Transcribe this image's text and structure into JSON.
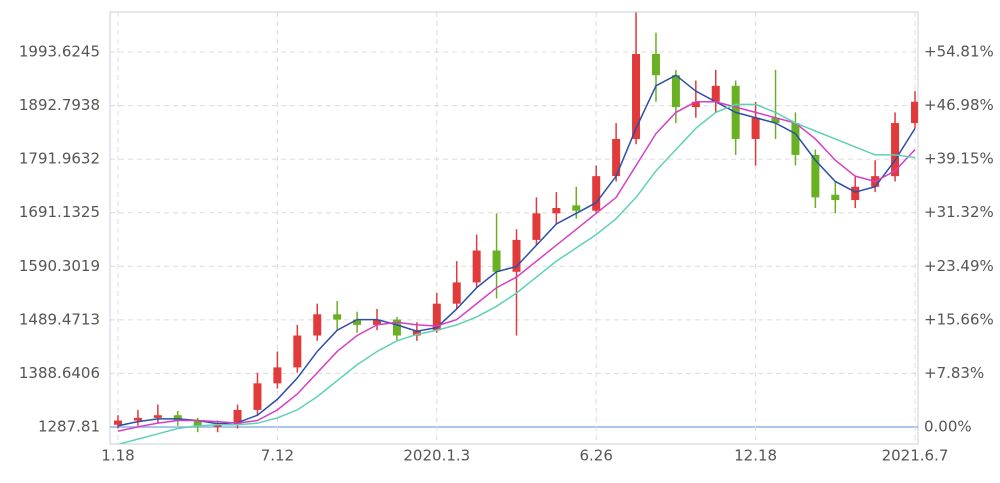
{
  "chart_data": {
    "type": "candlestick",
    "categories": [
      "1.18",
      null,
      null,
      null,
      null,
      null,
      null,
      null,
      "7.12",
      null,
      null,
      null,
      null,
      null,
      null,
      null,
      "2020.1.3",
      null,
      null,
      null,
      null,
      null,
      null,
      null,
      "6.26",
      null,
      null,
      null,
      null,
      null,
      null,
      null,
      "12.18",
      null,
      null,
      null,
      null,
      null,
      null,
      null,
      "2021.6.7"
    ],
    "open": [
      1292,
      1300,
      1305,
      1310,
      1300,
      1288,
      1292,
      1320,
      1370,
      1400,
      1460,
      1500,
      1490,
      1480,
      1490,
      1460,
      1470,
      1520,
      1560,
      1620,
      1580,
      1640,
      1690,
      1705,
      1695,
      1760,
      1830,
      1990,
      1950,
      1890,
      1900,
      1930,
      1830,
      1870,
      1860,
      1800,
      1725,
      1715,
      1740,
      1760,
      1860
    ],
    "high": [
      1310,
      1320,
      1330,
      1318,
      1305,
      1300,
      1330,
      1390,
      1430,
      1480,
      1520,
      1525,
      1505,
      1510,
      1495,
      1485,
      1540,
      1600,
      1650,
      1690,
      1660,
      1720,
      1730,
      1740,
      1780,
      1860,
      2068,
      2030,
      1960,
      1940,
      1960,
      1940,
      1900,
      1960,
      1880,
      1810,
      1750,
      1760,
      1790,
      1880,
      1920
    ],
    "low": [
      1285,
      1290,
      1295,
      1290,
      1278,
      1278,
      1285,
      1310,
      1360,
      1390,
      1450,
      1470,
      1465,
      1470,
      1450,
      1450,
      1465,
      1510,
      1550,
      1530,
      1460,
      1630,
      1670,
      1680,
      1690,
      1750,
      1820,
      1900,
      1860,
      1870,
      1880,
      1800,
      1780,
      1830,
      1780,
      1700,
      1690,
      1700,
      1730,
      1750,
      1850
    ],
    "close": [
      1300,
      1305,
      1310,
      1300,
      1290,
      1292,
      1320,
      1370,
      1400,
      1460,
      1500,
      1490,
      1480,
      1490,
      1460,
      1470,
      1520,
      1560,
      1620,
      1580,
      1640,
      1690,
      1700,
      1695,
      1760,
      1830,
      1990,
      1950,
      1890,
      1900,
      1930,
      1830,
      1870,
      1860,
      1800,
      1720,
      1715,
      1740,
      1760,
      1860,
      1900
    ],
    "up_color": "#e03a3a",
    "down_color": "#6ab023",
    "series": [
      {
        "color": "#2a4fa8",
        "values": [
          1290,
          1298,
          1303,
          1303,
          1300,
          1294,
          1296,
          1310,
          1340,
          1380,
          1430,
          1470,
          1490,
          1490,
          1480,
          1468,
          1475,
          1510,
          1550,
          1580,
          1590,
          1630,
          1670,
          1690,
          1710,
          1760,
          1850,
          1930,
          1950,
          1920,
          1900,
          1880,
          1870,
          1860,
          1840,
          1790,
          1750,
          1730,
          1740,
          1790,
          1850
        ]
      },
      {
        "color": "#d63fc4",
        "values": [
          1280,
          1288,
          1295,
          1300,
          1300,
          1298,
          1295,
          1300,
          1320,
          1350,
          1390,
          1430,
          1460,
          1480,
          1485,
          1480,
          1478,
          1490,
          1520,
          1550,
          1570,
          1600,
          1630,
          1660,
          1690,
          1720,
          1780,
          1840,
          1880,
          1900,
          1900,
          1890,
          1880,
          1870,
          1860,
          1830,
          1790,
          1760,
          1750,
          1770,
          1810
        ]
      },
      {
        "color": "#5fd1b5",
        "values": [
          1255,
          1265,
          1275,
          1285,
          1290,
          1292,
          1292,
          1295,
          1305,
          1320,
          1345,
          1375,
          1405,
          1430,
          1450,
          1462,
          1470,
          1480,
          1495,
          1515,
          1540,
          1570,
          1600,
          1625,
          1650,
          1680,
          1720,
          1770,
          1810,
          1850,
          1880,
          1895,
          1895,
          1880,
          1860,
          1845,
          1830,
          1815,
          1800,
          1800,
          1795
        ]
      }
    ],
    "ylim": [
      1255.8,
      2069
    ],
    "yticks": [
      1287.81,
      1388.6406,
      1489.4713,
      1590.3019,
      1691.1325,
      1791.9632,
      1892.7938,
      1993.6245
    ],
    "y2lim": [
      -2.49,
      60.66
    ],
    "y2ticks": [
      {
        "value": 0,
        "label": "0.00%"
      },
      {
        "value": 7.83,
        "label": "+7.83%"
      },
      {
        "value": 15.66,
        "label": "+15.66%"
      },
      {
        "value": 23.49,
        "label": "+23.49%"
      },
      {
        "value": 31.32,
        "label": "+31.32%"
      },
      {
        "value": 39.15,
        "label": "+39.15%"
      },
      {
        "value": 46.98,
        "label": "+46.98%"
      },
      {
        "value": 54.81,
        "label": "+54.81%"
      }
    ],
    "grid": true
  }
}
